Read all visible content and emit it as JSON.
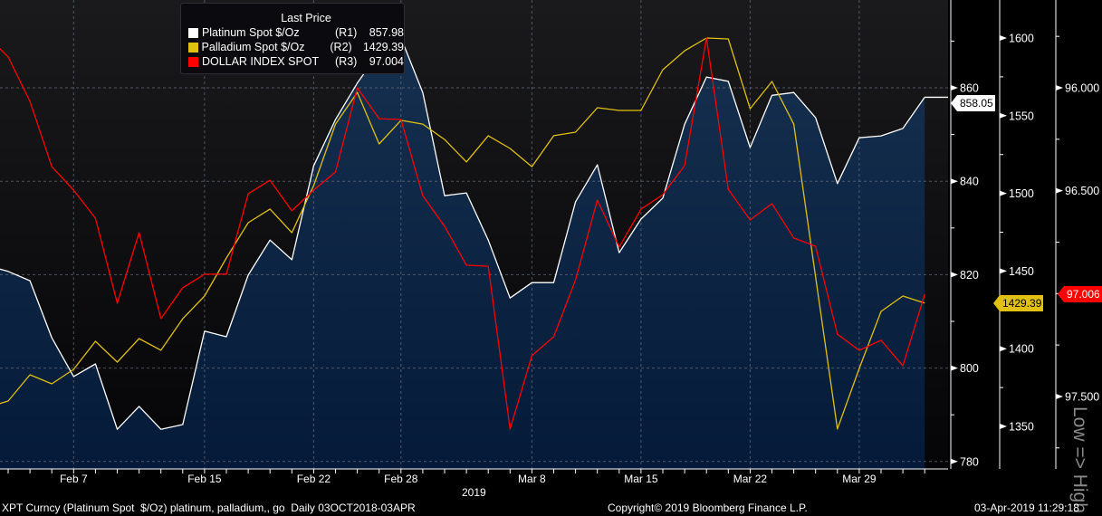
{
  "chart_data": {
    "type": "line",
    "title": "Last Price",
    "x": [
      "Feb 1",
      "Feb 4",
      "Feb 5",
      "Feb 6",
      "Feb 7",
      "Feb 8",
      "Feb 11",
      "Feb 12",
      "Feb 13",
      "Feb 14",
      "Feb 15",
      "Feb 18",
      "Feb 19",
      "Feb 20",
      "Feb 21",
      "Feb 22",
      "Feb 25",
      "Feb 26",
      "Feb 27",
      "Feb 28",
      "Mar 1",
      "Mar 4",
      "Mar 5",
      "Mar 6",
      "Mar 7",
      "Mar 8",
      "Mar 11",
      "Mar 12",
      "Mar 13",
      "Mar 14",
      "Mar 15",
      "Mar 18",
      "Mar 19",
      "Mar 20",
      "Mar 21",
      "Mar 22",
      "Mar 25",
      "Mar 26",
      "Mar 27",
      "Mar 28",
      "Mar 29",
      "Apr 1",
      "Apr 2",
      "Apr 3"
    ],
    "x_tick_labels": [
      "Feb 7",
      "Feb 15",
      "Feb 22",
      "Feb 28",
      "Mar 8",
      "Mar 15",
      "Mar 22",
      "Mar 29"
    ],
    "x_year_label": "2019",
    "series": [
      {
        "name": "Platinum Spot $/Oz",
        "axis": "R1",
        "color": "#ffffff",
        "style": "area",
        "last": "857.98",
        "tag": "858.05",
        "values": [
          822.0,
          820.7,
          818.7,
          806.5,
          798.2,
          800.9,
          786.9,
          791.8,
          786.9,
          787.9,
          807.9,
          806.7,
          819.9,
          827.4,
          823.2,
          843.3,
          853.2,
          861.0,
          867.6,
          870.7,
          859.0,
          836.9,
          837.5,
          827.4,
          815.0,
          818.3,
          818.3,
          835.6,
          843.5,
          824.7,
          831.9,
          836.4,
          852.2,
          862.3,
          861.4,
          847.2,
          858.4,
          859.0,
          853.6,
          839.5,
          849.3,
          849.7,
          851.3,
          857.98
        ]
      },
      {
        "name": "Palladium Spot $/Oz",
        "axis": "R2",
        "color": "#e0c010",
        "style": "line",
        "last": "1429.39",
        "tag": "1429.39",
        "values": [
          1362.2,
          1366.3,
          1383.2,
          1377.4,
          1386.7,
          1404.8,
          1391.4,
          1406.5,
          1399.0,
          1419.3,
          1433.9,
          1458.4,
          1481.1,
          1489.9,
          1474.7,
          1505.0,
          1544.6,
          1565.0,
          1531.8,
          1547.0,
          1544.6,
          1534.7,
          1520.2,
          1537.1,
          1528.9,
          1517.2,
          1537.1,
          1539.4,
          1555.1,
          1553.4,
          1553.4,
          1579.6,
          1591.8,
          1600.0,
          1599.4,
          1554.5,
          1572.0,
          1544.6,
          1446.2,
          1348.3,
          1387.3,
          1424.0,
          1433.9,
          1429.39
        ]
      },
      {
        "name": "DOLLAR INDEX SPOT",
        "axis": "R3",
        "color": "#ff0000",
        "style": "line",
        "last": "97.004",
        "tag": "97.006",
        "values": [
          95.745,
          95.85,
          96.066,
          96.383,
          96.497,
          96.634,
          97.047,
          96.704,
          97.122,
          96.972,
          96.906,
          96.906,
          96.515,
          96.449,
          96.598,
          96.497,
          96.409,
          96.0,
          96.15,
          96.154,
          96.524,
          96.673,
          96.862,
          96.867,
          97.659,
          97.302,
          97.21,
          96.933,
          96.546,
          96.774,
          96.59,
          96.519,
          96.378,
          95.758,
          96.493,
          96.642,
          96.563,
          96.73,
          96.77,
          97.197,
          97.276,
          97.227,
          97.351,
          97.004
        ]
      }
    ],
    "axes": {
      "R1": {
        "ticks": [
          "780",
          "800",
          "820",
          "840",
          "860"
        ],
        "range": [
          779,
          879
        ]
      },
      "R2": {
        "ticks": [
          "1350",
          "1400",
          "1450",
          "1500",
          "1550",
          "1600"
        ],
        "range": [
          1325,
          1625
        ]
      },
      "R3": {
        "ticks": [
          "96.000",
          "96.500",
          "97.500"
        ],
        "range": [
          95.57,
          97.85
        ],
        "inverted": true,
        "label": "Low => High"
      }
    },
    "grid": true,
    "legend_position": "top-left"
  },
  "legend": {
    "title": "Last Price",
    "rows": [
      {
        "name": "Platinum Spot $/Oz",
        "axis": "(R1)",
        "value": "857.98"
      },
      {
        "name": "Palladium Spot $/Oz",
        "axis": "(R2)",
        "value": "1429.39"
      },
      {
        "name": "DOLLAR INDEX SPOT",
        "axis": "(R3)",
        "value": "97.004"
      }
    ]
  },
  "footer": {
    "left": "XPT Curncy (Platinum Spot  $/Oz) platinum, palladium,, go  Daily 03OCT2018-03APR",
    "center": "Copyright© 2019 Bloomberg Finance L.P.",
    "right": "03-Apr-2019 11:29:18"
  }
}
